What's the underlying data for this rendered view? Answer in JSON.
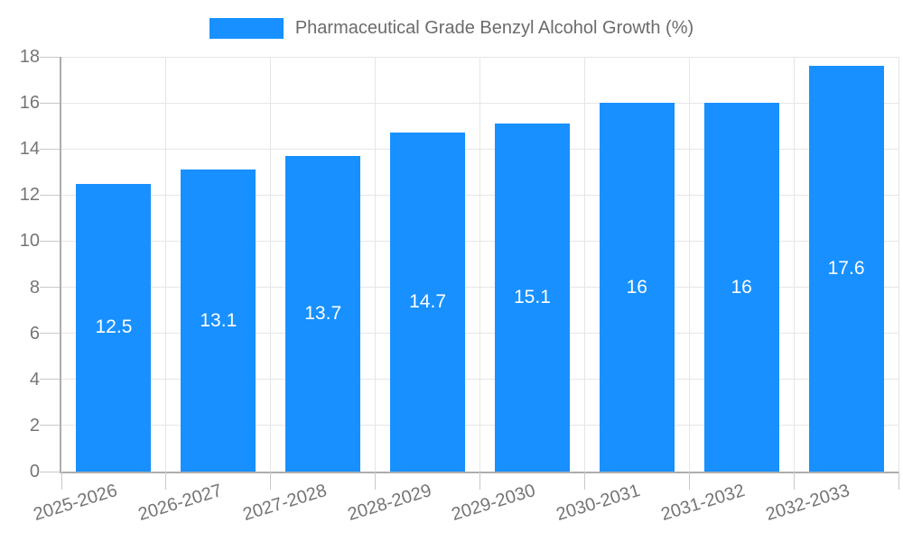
{
  "chart_data": {
    "type": "bar",
    "title": "Pharmaceutical Grade Benzyl Alcohol Growth (%)",
    "legend": {
      "label": "Pharmaceutical Grade Benzyl Alcohol Growth (%)",
      "position": "top-center"
    },
    "categories": [
      "2025-2026",
      "2026-2027",
      "2027-2028",
      "2028-2029",
      "2029-2030",
      "2030-2031",
      "2031-2032",
      "2032-2033"
    ],
    "values": [
      12.5,
      13.1,
      13.7,
      14.7,
      15.1,
      16,
      16,
      17.6
    ],
    "bar_labels": [
      "12.5",
      "13.1",
      "13.7",
      "14.7",
      "15.1",
      "16",
      "16",
      "17.6"
    ],
    "xlabel": "",
    "ylabel": "",
    "ylim": [
      0,
      18
    ],
    "yticks": [
      0,
      2,
      4,
      6,
      8,
      10,
      12,
      14,
      16,
      18
    ],
    "grid": true,
    "x_label_rotation_deg": -17,
    "colors": {
      "bar": "#1890ff",
      "bar_value_text": "#ffffff",
      "axis_line": "#adadad",
      "grid_line": "#e6e6e6",
      "tick_mark": "#c9c9c9",
      "tick_text": "#757575",
      "legend_text": "#6b6b6b"
    }
  }
}
